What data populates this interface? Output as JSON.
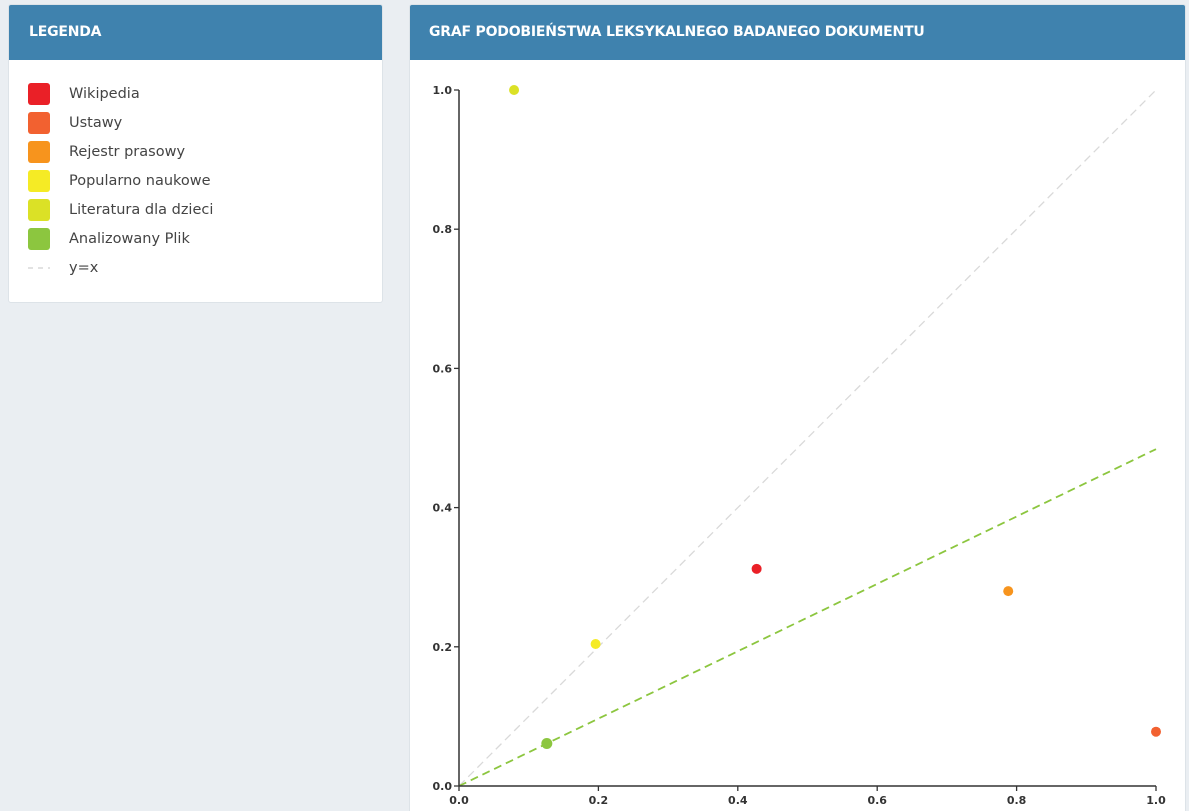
{
  "legend": {
    "title": "LEGENDA",
    "items": [
      {
        "label": "Wikipedia",
        "color": "#ea2027",
        "kind": "swatch"
      },
      {
        "label": "Ustawy",
        "color": "#f26130",
        "kind": "swatch"
      },
      {
        "label": "Rejestr prasowy",
        "color": "#f7941d",
        "kind": "swatch"
      },
      {
        "label": "Popularno naukowe",
        "color": "#f5eb25",
        "kind": "swatch"
      },
      {
        "label": "Literatura dla dzieci",
        "color": "#dbe126",
        "kind": "swatch"
      },
      {
        "label": "Analizowany Plik",
        "color": "#8cc63f",
        "kind": "swatch"
      },
      {
        "label": "y=x",
        "color": "#d9d9d9",
        "kind": "dashed-line"
      }
    ]
  },
  "graph": {
    "title": "GRAF PODOBIEŃSTWA LEKSYKALNEGO BADANEGO DOKUMENTU"
  },
  "chart_data": {
    "type": "scatter",
    "title": "GRAF PODOBIEŃSTWA LEKSYKALNEGO BADANEGO DOKUMENTU",
    "xlabel": "",
    "ylabel": "",
    "xlim": [
      0,
      1
    ],
    "ylim": [
      0,
      1
    ],
    "xticks": [
      "0.0",
      "0.2",
      "0.4",
      "0.6",
      "0.8",
      "1.0"
    ],
    "yticks": [
      "0.0",
      "0.2",
      "0.4",
      "0.6",
      "0.8",
      "1.0"
    ],
    "grid": false,
    "legend": "separate-panel",
    "series": [
      {
        "name": "Wikipedia",
        "color": "#ea2027",
        "points": [
          {
            "x": 0.427,
            "y": 0.312
          }
        ]
      },
      {
        "name": "Ustawy",
        "color": "#f26130",
        "points": [
          {
            "x": 1.0,
            "y": 0.078
          }
        ]
      },
      {
        "name": "Rejestr prasowy",
        "color": "#f7941d",
        "points": [
          {
            "x": 0.788,
            "y": 0.28
          }
        ]
      },
      {
        "name": "Popularno naukowe",
        "color": "#f5eb25",
        "points": [
          {
            "x": 0.196,
            "y": 0.204
          }
        ]
      },
      {
        "name": "Literatura dla dzieci",
        "color": "#dbe126",
        "points": [
          {
            "x": 0.079,
            "y": 1.0
          }
        ]
      },
      {
        "name": "Analizowany Plik",
        "color": "#8cc63f",
        "points": [
          {
            "x": 0.126,
            "y": 0.061
          }
        ]
      }
    ],
    "lines": [
      {
        "name": "y=x",
        "color": "#d9d9d9",
        "dashed": true,
        "from": [
          0,
          0
        ],
        "to": [
          1,
          1
        ]
      },
      {
        "name": "Analizowany Plik",
        "color": "#8cc63f",
        "dashed": true,
        "from": [
          0,
          0
        ],
        "to": [
          1,
          0.484
        ]
      }
    ]
  }
}
